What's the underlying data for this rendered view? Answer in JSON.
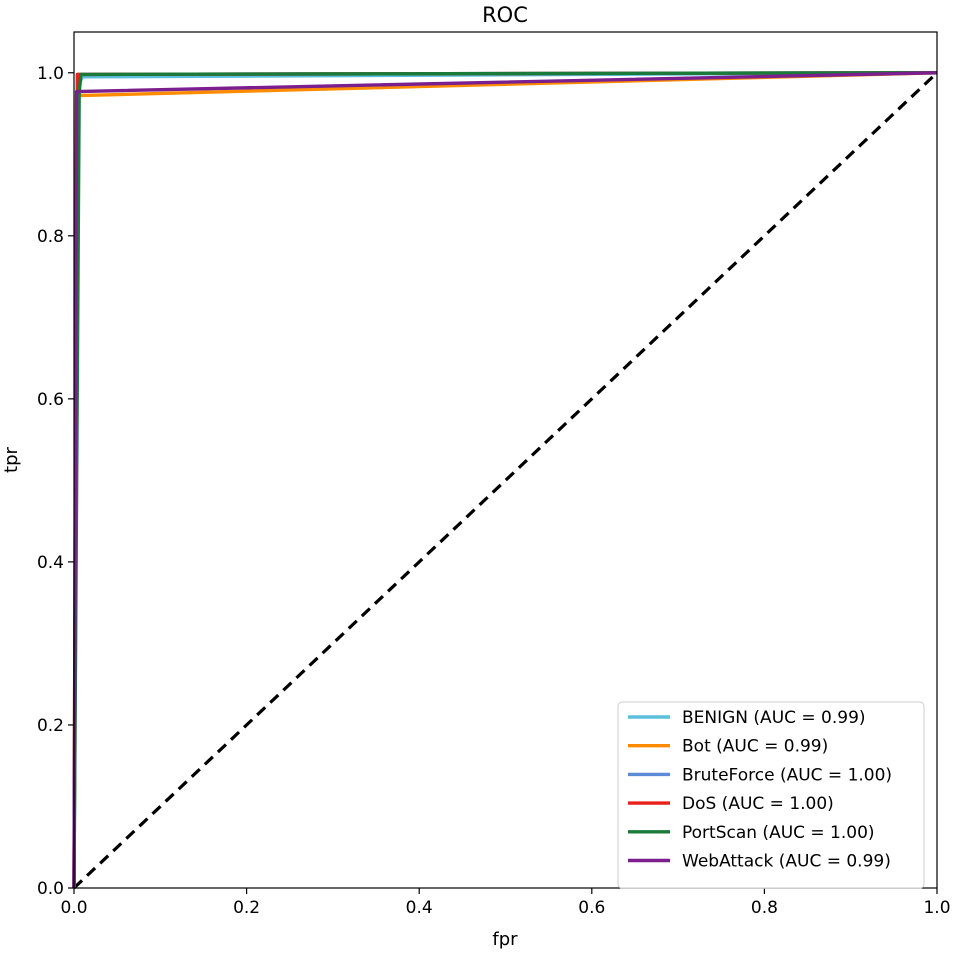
{
  "chart_data": {
    "type": "line",
    "title": "ROC",
    "xlabel": "fpr",
    "ylabel": "tpr",
    "xlim": [
      0.0,
      1.0
    ],
    "ylim": [
      0.0,
      1.05
    ],
    "xticks": [
      "0.0",
      "0.2",
      "0.4",
      "0.6",
      "0.8",
      "1.0"
    ],
    "yticks": [
      "0.0",
      "0.2",
      "0.4",
      "0.6",
      "0.8",
      "1.0"
    ],
    "grid": false,
    "legend_position": "lower-right",
    "series": [
      {
        "name": "BENIGN (AUC = 0.99)",
        "color": "#5bc0de",
        "x": [
          0.0,
          0.005,
          0.01,
          1.0
        ],
        "y": [
          0.0,
          0.985,
          0.995,
          1.0
        ]
      },
      {
        "name": "Bot (AUC = 0.99)",
        "color": "#ff8c00",
        "x": [
          0.0,
          0.003,
          0.005,
          1.0
        ],
        "y": [
          0.0,
          0.97,
          0.972,
          1.0
        ]
      },
      {
        "name": "BruteForce (AUC = 1.00)",
        "color": "#5b8bd6",
        "x": [
          0.0,
          0.004,
          1.0
        ],
        "y": [
          0.0,
          0.998,
          1.0
        ]
      },
      {
        "name": "DoS (AUC = 1.00)",
        "color": "#e8211b",
        "x": [
          0.0,
          0.004,
          1.0
        ],
        "y": [
          0.0,
          0.998,
          1.0
        ]
      },
      {
        "name": "PortScan (AUC = 1.00)",
        "color": "#1a7a3a",
        "x": [
          0.0,
          0.006,
          0.008,
          1.0
        ],
        "y": [
          0.0,
          0.975,
          0.998,
          1.0
        ]
      },
      {
        "name": "WebAttack (AUC = 0.99)",
        "color": "#7b1f8f",
        "x": [
          0.0,
          0.003,
          1.0
        ],
        "y": [
          0.0,
          0.977,
          1.0
        ]
      }
    ],
    "reference_line": {
      "style": "dashed",
      "color": "#000000",
      "x": [
        0.0,
        1.0
      ],
      "y": [
        0.0,
        1.0
      ]
    }
  }
}
